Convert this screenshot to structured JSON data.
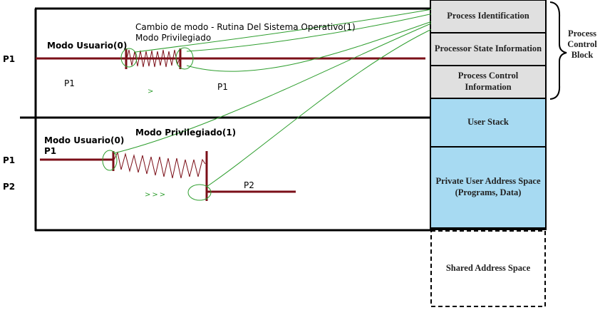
{
  "left_panel": {
    "top_section": {
      "row_label": "P1",
      "mode_user": "Modo Usuario(0)",
      "mode_change_line1": "Cambio de modo - Rutina Del Sistema Operativo(1)",
      "mode_change_line2": "Modo Privilegiado",
      "process_left": "P1",
      "process_right": "P1",
      "arrow_marker": ">"
    },
    "bottom_section": {
      "row_label_p1": "P1",
      "row_label_p2": "P2",
      "mode_user": "Modo Usuario(0)",
      "mode_user_process": "P1",
      "mode_privileged": "Modo Privilegiado(1)",
      "process_p2": "P2",
      "arrow_marker": ">>>"
    }
  },
  "pcb": {
    "cells": [
      {
        "label": "Process Identification",
        "fill": "#e0e0e0"
      },
      {
        "label": "Processor State Information",
        "fill": "#e0e0e0"
      },
      {
        "label": "Process Control Information",
        "fill": "#e0e0e0"
      },
      {
        "label": "User Stack",
        "fill": "#a7daf2"
      },
      {
        "label": "Private User Address Space (Programs, Data)",
        "fill": "#a7daf2"
      },
      {
        "label": "Shared Address Space",
        "fill": "#ffffff"
      }
    ],
    "brace_label": "Process Control Block"
  },
  "colors": {
    "timeline": "#7b0f18",
    "annotation": "#2e9e2e",
    "outline": "#000000"
  }
}
